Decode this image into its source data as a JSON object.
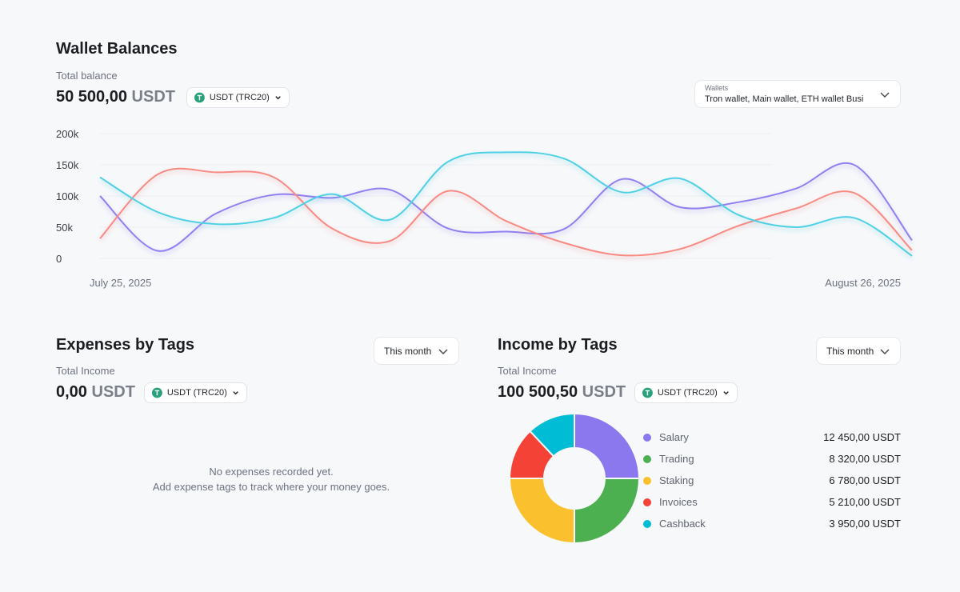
{
  "wallet_balances": {
    "title": "Wallet Balances",
    "total_label": "Total balance",
    "amount": "50 500,00",
    "unit": "USDT",
    "currency": "USDT (TRC20)",
    "wallets_label": "Wallets",
    "wallets_value": "Tron wallet, Main wallet, ETH wallet Busi"
  },
  "expenses": {
    "title": "Expenses by Tags",
    "period": "This month",
    "total_label": "Total Income",
    "amount": "0,00",
    "unit": "USDT",
    "currency": "USDT (TRC20)",
    "empty_message": [
      "No expenses recorded yet.",
      "Add expense tags to track where your money goes."
    ]
  },
  "income": {
    "title": "Income by Tags",
    "period": "This month",
    "total_label": "Total Income",
    "amount": "100 500,50",
    "unit": "USDT",
    "currency": "USDT (TRC20)",
    "amounts": [
      "12 450,00 USDT",
      "8 320,00 USDT",
      "6 780,00 USDT",
      "5 210,00 USDT",
      "3 950,00 USDT"
    ]
  },
  "chart_data": [
    {
      "type": "line",
      "smooth": true,
      "grid": true,
      "categories": [
        "July 25, 2025",
        null,
        null,
        null,
        null,
        null,
        null,
        null,
        null,
        null,
        null,
        null,
        null,
        null,
        "August 26, 2025"
      ],
      "ylim": [
        0,
        200000
      ],
      "yticks": [
        0,
        {
          "value": 50000,
          "label": "50k"
        },
        {
          "value": 100000,
          "label": "100k"
        },
        {
          "value": 150000,
          "label": "150k"
        },
        {
          "value": 200000,
          "label": "200k"
        }
      ],
      "series": [
        {
          "color": "#8f7ff0",
          "values": [
            100000,
            12000,
            72000,
            102000,
            97000,
            110000,
            48000,
            43000,
            47000,
            127000,
            82000,
            90000,
            112000,
            150000,
            29000
          ]
        },
        {
          "color": "#f88a84",
          "values": [
            32000,
            135000,
            138000,
            130000,
            48000,
            28000,
            108000,
            60000,
            25000,
            5000,
            15000,
            52000,
            80000,
            105000,
            13000
          ]
        },
        {
          "color": "#4fd0e4",
          "values": [
            130000,
            74000,
            55000,
            65000,
            103000,
            62000,
            155000,
            170000,
            160000,
            106000,
            128000,
            70000,
            50000,
            65000,
            4000
          ]
        }
      ]
    },
    {
      "type": "donut",
      "categories": [
        "Salary",
        "Trading",
        "Staking",
        "Invoices",
        "Cashback"
      ],
      "colors": [
        "#8b78ee",
        "#4caf50",
        "#fbc02d",
        "#f44336",
        "#00bcd4"
      ],
      "values": [
        25,
        25,
        25,
        13,
        12
      ]
    }
  ]
}
